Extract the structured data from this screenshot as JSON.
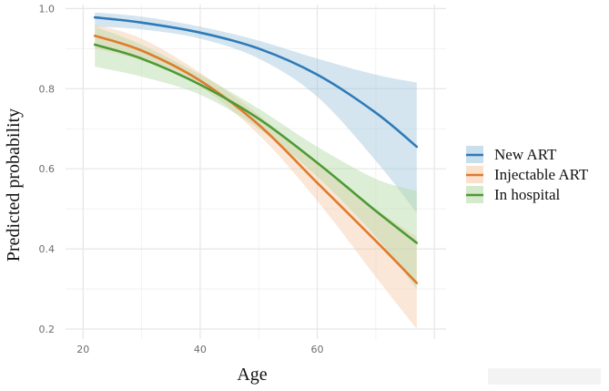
{
  "chart_data": {
    "type": "line",
    "title": "",
    "xlabel": "Age",
    "ylabel": "Predicted probability",
    "xlim": [
      17,
      82
    ],
    "ylim": [
      0.175,
      1.01
    ],
    "x_ticks": [
      {
        "value": 20,
        "label": "20"
      },
      {
        "value": 40,
        "label": "40"
      },
      {
        "value": 60,
        "label": "60"
      }
    ],
    "y_ticks": [
      {
        "value": 0.2,
        "label": "0.2"
      },
      {
        "value": 0.4,
        "label": "0.4"
      },
      {
        "value": 0.6,
        "label": "0.6"
      },
      {
        "value": 0.8,
        "label": "0.8"
      },
      {
        "value": 1.0,
        "label": "1.0"
      }
    ],
    "grid": true,
    "legend_position": "right",
    "legend_title": "",
    "series": [
      {
        "name": "New ART",
        "color": "#2e7ab8",
        "band_color": "#9fc5dc",
        "x": [
          22,
          30,
          40,
          50,
          60,
          70,
          77
        ],
        "y": [
          0.978,
          0.965,
          0.94,
          0.9,
          0.835,
          0.74,
          0.655
        ],
        "lower": [
          0.955,
          0.948,
          0.925,
          0.875,
          0.78,
          0.62,
          0.49
        ],
        "upper": [
          0.99,
          0.98,
          0.955,
          0.92,
          0.875,
          0.835,
          0.815
        ]
      },
      {
        "name": "Injectable ART",
        "color": "#e07b2e",
        "band_color": "#f6c9a6",
        "x": [
          22,
          30,
          40,
          50,
          60,
          70,
          77
        ],
        "y": [
          0.932,
          0.895,
          0.82,
          0.71,
          0.565,
          0.42,
          0.315
        ],
        "lower": [
          0.9,
          0.87,
          0.805,
          0.685,
          0.52,
          0.33,
          0.2
        ],
        "upper": [
          0.96,
          0.925,
          0.84,
          0.735,
          0.61,
          0.5,
          0.43
        ]
      },
      {
        "name": "In hospital",
        "color": "#4c9a36",
        "band_color": "#b3d9a3",
        "x": [
          22,
          30,
          40,
          50,
          60,
          70,
          77
        ],
        "y": [
          0.91,
          0.875,
          0.81,
          0.725,
          0.615,
          0.495,
          0.415
        ],
        "lower": [
          0.855,
          0.83,
          0.785,
          0.7,
          0.58,
          0.43,
          0.3
        ],
        "upper": [
          0.955,
          0.91,
          0.835,
          0.75,
          0.655,
          0.575,
          0.545
        ]
      }
    ]
  }
}
